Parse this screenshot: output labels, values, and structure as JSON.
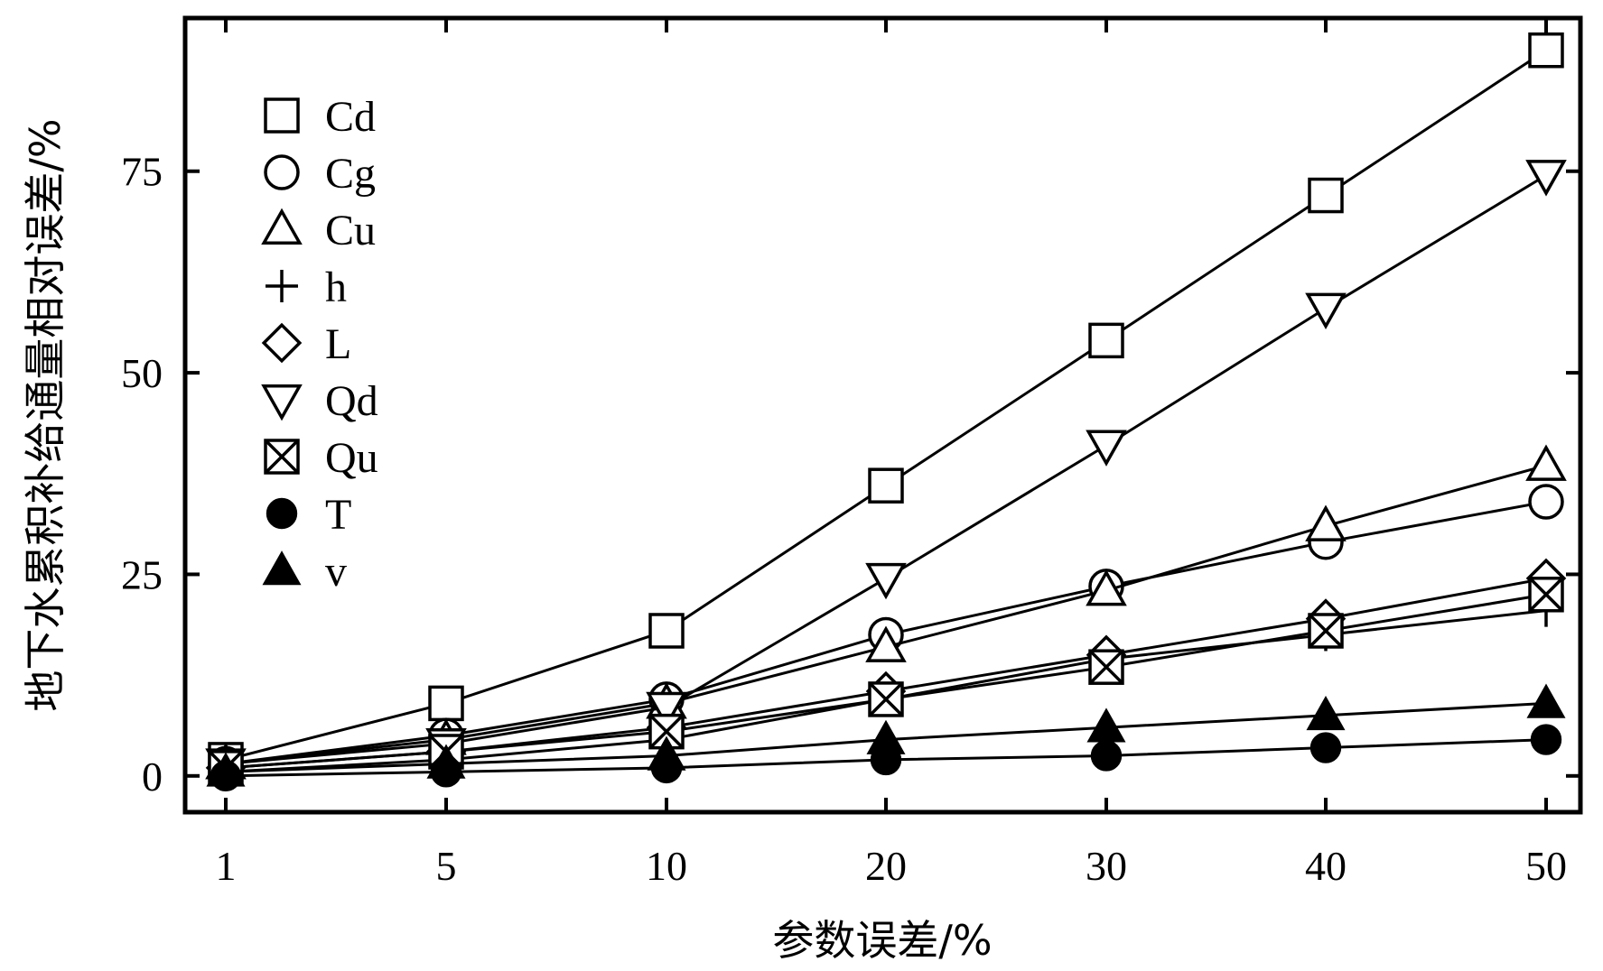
{
  "chart_data": {
    "type": "line",
    "categories": [
      "1",
      "5",
      "10",
      "20",
      "30",
      "40",
      "50"
    ],
    "xlabel": "参数误差/%",
    "ylabel": "地下水累积补给通量相对误差/%",
    "ylim": [
      -4.5,
      94
    ],
    "yticks": [
      0,
      25,
      50,
      75
    ],
    "series": [
      {
        "name": "Cd",
        "marker": "square",
        "values": [
          2,
          9,
          18,
          36,
          54,
          72,
          90
        ]
      },
      {
        "name": "Cg",
        "marker": "circle",
        "values": [
          1.5,
          5,
          9.5,
          17.5,
          23.5,
          29,
          34
        ]
      },
      {
        "name": "Cu",
        "marker": "triangle-up",
        "values": [
          1.5,
          4.5,
          9,
          16,
          23,
          31,
          38.5
        ]
      },
      {
        "name": "h",
        "marker": "plus",
        "values": [
          0.5,
          2,
          4.5,
          9.5,
          14.5,
          17.5,
          20.5
        ]
      },
      {
        "name": "L",
        "marker": "diamond",
        "values": [
          1,
          3,
          6,
          10.5,
          15,
          19.5,
          24.5
        ]
      },
      {
        "name": "Qd",
        "marker": "triangle-down",
        "values": [
          1.5,
          4,
          8.5,
          24.5,
          41,
          58,
          74.5
        ]
      },
      {
        "name": "Qu",
        "marker": "square-x",
        "values": [
          1,
          3,
          5.5,
          9.5,
          13.5,
          18,
          22.5
        ]
      },
      {
        "name": "T",
        "marker": "filled-circle",
        "values": [
          0,
          0.5,
          1,
          2,
          2.5,
          3.5,
          4.5
        ]
      },
      {
        "name": "v",
        "marker": "filled-triangle",
        "values": [
          0.5,
          1.5,
          2.5,
          4.5,
          6,
          7.5,
          9
        ]
      }
    ],
    "legend": "top-left",
    "grid": false
  }
}
